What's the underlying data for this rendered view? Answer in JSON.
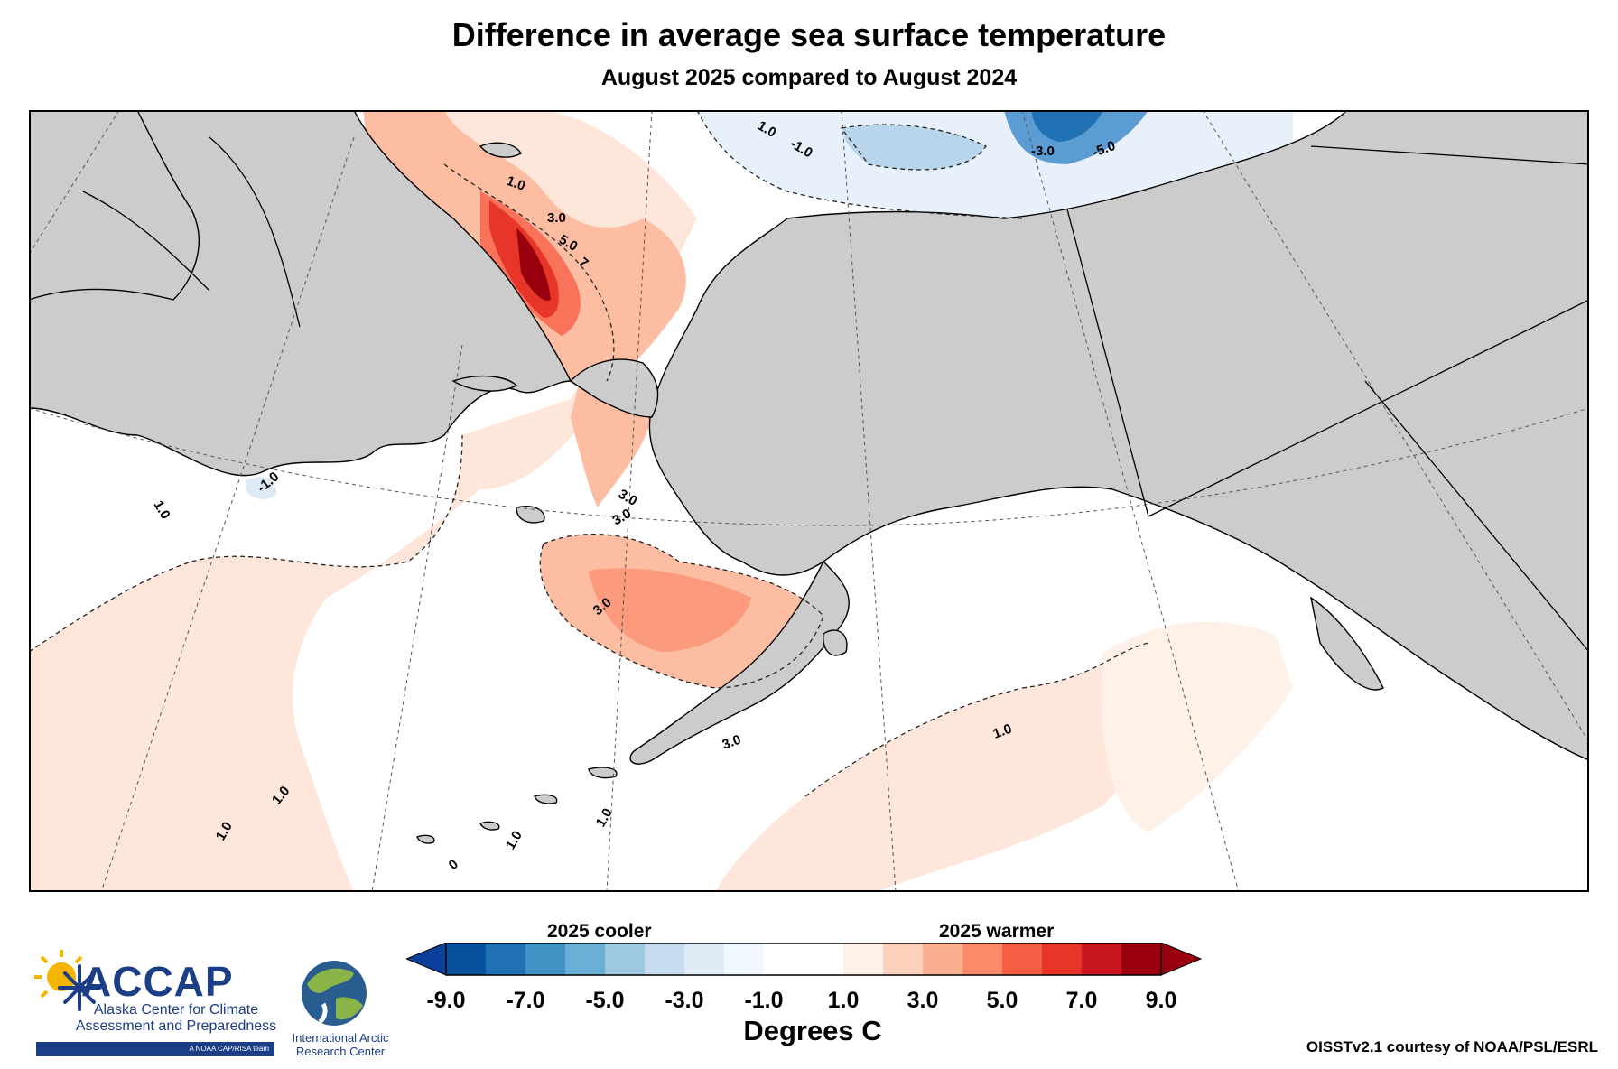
{
  "title": "Difference in average sea surface temperature",
  "subtitle": "August 2025 compared to August 2024",
  "map": {
    "contour_labels": [
      "1.0",
      "1.0",
      "1.0",
      "1.0",
      "1.0",
      "1.0",
      "1.0",
      "1.0",
      "3.0",
      "3.0",
      "3.0",
      "3.0",
      "3.0",
      "5.0",
      "7",
      "-1.0",
      "-1.0",
      "-3.0",
      "-5.0",
      "0"
    ]
  },
  "colorbar": {
    "cooler_label": "2025 cooler",
    "warmer_label": "2025 warmer",
    "ticks": [
      "-9.0",
      "-7.0",
      "-5.0",
      "-3.0",
      "-1.0",
      "1.0",
      "3.0",
      "5.0",
      "7.0",
      "9.0"
    ],
    "colors": [
      "#08519c",
      "#2171b5",
      "#4292c6",
      "#6baed6",
      "#9ecae1",
      "#c6dbef",
      "#deebf7",
      "#f0f7ff",
      "#ffffff",
      "#ffffff",
      "#fff0e8",
      "#fcd0bb",
      "#fcae91",
      "#fb8a6a",
      "#f65e44",
      "#e8352a",
      "#c7161c",
      "#99000d"
    ],
    "under_color": "#0a3f9a",
    "over_color": "#99000d",
    "units": "Degrees C"
  },
  "logos": {
    "accap_name": "ACCAP",
    "accap_full": "Alaska Center for Climate Assessment and Preparedness",
    "accap_tag": "A NOAA CAP/RISA team",
    "iarc_name": "International Arctic Research Center"
  },
  "credit": "OISSTv2.1 courtesy of NOAA/PSL/ESRL",
  "style": {
    "land": "#cccccc",
    "ocean": "#ffffff"
  }
}
